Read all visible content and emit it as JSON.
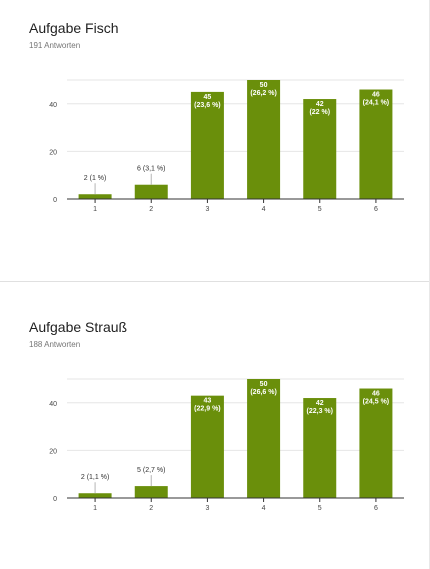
{
  "responses": [
    {
      "title": "Aufgabe Fisch",
      "count_text": "191 Antworten"
    },
    {
      "title": "Aufgabe Strauß",
      "count_text": "188 Antworten"
    }
  ],
  "colors": {
    "bar": "#6a8f0b",
    "grid": "#e6e6e6",
    "axis": "#333333",
    "tick_text": "#444444",
    "label_dark": "#333333",
    "label_light": "#ffffff"
  },
  "chart_data": [
    {
      "type": "bar",
      "categories": [
        "1",
        "2",
        "3",
        "4",
        "5",
        "6"
      ],
      "values": [
        2,
        6,
        45,
        50,
        42,
        46
      ],
      "data_labels": [
        [
          "2 (1 %)"
        ],
        [
          "6 (3,1 %)"
        ],
        [
          "45",
          "(23,6 %)"
        ],
        [
          "50",
          "(26,2 %)"
        ],
        [
          "42",
          "(22 %)"
        ],
        [
          "46",
          "(24,1 %)"
        ]
      ],
      "ylim": [
        0,
        50
      ],
      "yticks": [
        0,
        20,
        40
      ],
      "grid": true,
      "xlabel": "",
      "ylabel": ""
    },
    {
      "type": "bar",
      "categories": [
        "1",
        "2",
        "3",
        "4",
        "5",
        "6"
      ],
      "values": [
        2,
        5,
        43,
        50,
        42,
        46
      ],
      "data_labels": [
        [
          "2 (1,1 %)"
        ],
        [
          "5 (2,7 %)"
        ],
        [
          "43",
          "(22,9 %)"
        ],
        [
          "50",
          "(26,6 %)"
        ],
        [
          "42",
          "(22,3 %)"
        ],
        [
          "46",
          "(24,5 %)"
        ]
      ],
      "ylim": [
        0,
        50
      ],
      "yticks": [
        0,
        20,
        40
      ],
      "grid": true,
      "xlabel": "",
      "ylabel": ""
    }
  ]
}
